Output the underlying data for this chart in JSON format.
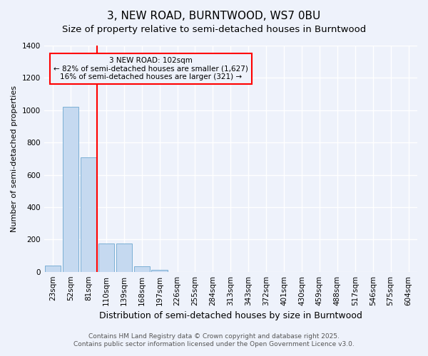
{
  "title": "3, NEW ROAD, BURNTWOOD, WS7 0BU",
  "subtitle": "Size of property relative to semi-detached houses in Burntwood",
  "xlabel": "Distribution of semi-detached houses by size in Burntwood",
  "ylabel": "Number of semi-detached properties",
  "categories": [
    "23sqm",
    "52sqm",
    "81sqm",
    "110sqm",
    "139sqm",
    "168sqm",
    "197sqm",
    "226sqm",
    "255sqm",
    "284sqm",
    "313sqm",
    "343sqm",
    "372sqm",
    "401sqm",
    "430sqm",
    "459sqm",
    "488sqm",
    "517sqm",
    "546sqm",
    "575sqm",
    "604sqm"
  ],
  "values": [
    40,
    1020,
    710,
    175,
    175,
    35,
    10,
    0,
    0,
    0,
    0,
    0,
    0,
    0,
    0,
    0,
    0,
    0,
    0,
    0,
    0
  ],
  "bar_color": "#c5d9f0",
  "bar_edge_color": "#7bafd4",
  "property_line_x": 2.5,
  "property_line_color": "red",
  "annotation_line1": "3 NEW ROAD: 102sqm",
  "annotation_line2": "← 82% of semi-detached houses are smaller (1,627)",
  "annotation_line3": "16% of semi-detached houses are larger (321) →",
  "annotation_box_color": "red",
  "ylim": [
    0,
    1400
  ],
  "yticks": [
    0,
    200,
    400,
    600,
    800,
    1000,
    1200,
    1400
  ],
  "background_color": "#eef2fb",
  "grid_color": "#ffffff",
  "footnote_line1": "Contains HM Land Registry data © Crown copyright and database right 2025.",
  "footnote_line2": "Contains public sector information licensed under the Open Government Licence v3.0.",
  "title_fontsize": 11,
  "subtitle_fontsize": 9.5,
  "xlabel_fontsize": 9,
  "ylabel_fontsize": 8,
  "tick_fontsize": 7.5,
  "annot_fontsize": 7.5,
  "footnote_fontsize": 6.5
}
